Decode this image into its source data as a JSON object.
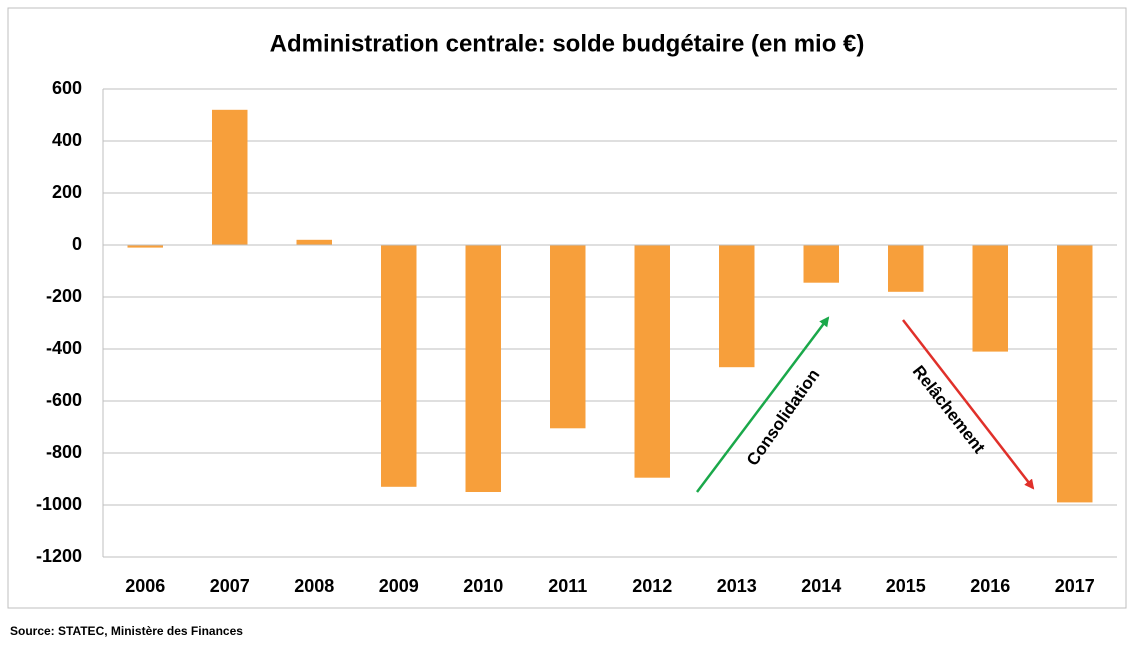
{
  "chart_data": {
    "type": "bar",
    "title": "Administration centrale: solde budgétaire (en mio €)",
    "categories": [
      "2006",
      "2007",
      "2008",
      "2009",
      "2010",
      "2011",
      "2012",
      "2013",
      "2014",
      "2015",
      "2016",
      "2017"
    ],
    "values": [
      -10,
      520,
      20,
      -930,
      -950,
      -705,
      -895,
      -470,
      -145,
      -180,
      -410,
      -990
    ],
    "color": "#f79f3b",
    "ylim": [
      -1200,
      600
    ],
    "yticks": [
      -1200,
      -1000,
      -800,
      -600,
      -400,
      -200,
      0,
      200,
      400,
      600
    ],
    "grid": true,
    "annotations": [
      "Consolidation",
      "Relâchement"
    ],
    "source": "Source: STATEC, Ministère des Finances"
  }
}
